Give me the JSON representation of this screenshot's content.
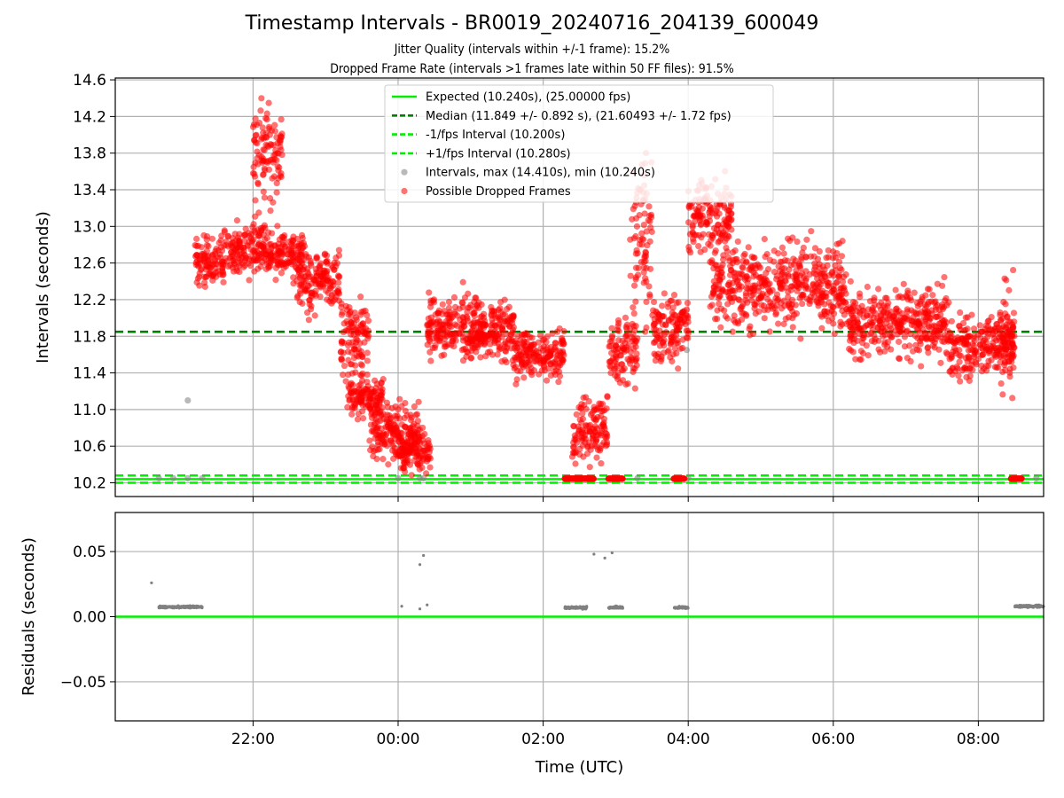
{
  "title": "Timestamp Intervals - BR0019_20240716_204139_600049",
  "subtitle1": "Jitter Quality (intervals within +/-1 frame): 15.2%",
  "subtitle2": "Dropped Frame Rate (intervals >1 frames late within 50 FF files): 91.5%",
  "colors": {
    "expected": "#00ee00",
    "median": "#008000",
    "bounds": "#00ee00",
    "intervals": "#808080",
    "dropped": "#ff0000"
  },
  "chart_data": [
    {
      "type": "scatter",
      "ylabel": "Intervals (seconds)",
      "xlabel": "",
      "x_unit": "hours UTC since 2024-07-16 00:00",
      "xlim": [
        20.1,
        32.9
      ],
      "ylim": [
        10.05,
        14.62
      ],
      "yticks": [
        "10.2",
        "10.6",
        "11.0",
        "11.4",
        "11.8",
        "12.2",
        "12.6",
        "13.0",
        "13.4",
        "13.8",
        "14.2",
        "14.6"
      ],
      "xticks": [
        "22:00",
        "00:00",
        "02:00",
        "04:00",
        "06:00",
        "08:00"
      ],
      "grid": true,
      "legend_position": "upper center",
      "series": [
        {
          "name": "Expected (10.240s), (25.00000 fps)",
          "kind": "hline",
          "y": 10.24,
          "style": "solid"
        },
        {
          "name": "Median (11.849 +/- 0.892 s), (21.60493 +/- 1.72 fps)",
          "kind": "hline",
          "y": 11.849,
          "style": "dashed"
        },
        {
          "name": "-1/fps Interval (10.200s)",
          "kind": "hline",
          "y": 10.2,
          "style": "dashed"
        },
        {
          "name": "+1/fps Interval (10.280s)",
          "kind": "hline",
          "y": 10.28,
          "style": "dashed"
        },
        {
          "name": "Intervals, max (14.410s), min (10.240s)",
          "kind": "scatter",
          "points": [
            [
              20.7,
              10.25
            ],
            [
              20.9,
              10.25
            ],
            [
              21.1,
              10.25
            ],
            [
              21.3,
              10.25
            ],
            [
              21.1,
              11.1
            ],
            [
              24.0,
              10.25
            ],
            [
              24.3,
              10.25
            ],
            [
              24.35,
              10.25
            ],
            [
              26.3,
              10.25
            ],
            [
              26.6,
              10.25
            ],
            [
              27.0,
              10.25
            ],
            [
              27.3,
              10.25
            ],
            [
              27.9,
              10.25
            ],
            [
              28.0,
              10.25
            ],
            [
              27.98,
              11.65
            ],
            [
              32.6,
              10.25
            ],
            [
              32.8,
              10.25
            ]
          ]
        },
        {
          "name": "Possible Dropped Frames",
          "kind": "scatter",
          "clusters": [
            {
              "x": [
                21.2,
                21.6
              ],
              "ymin": 12.3,
              "ymax": 12.95
            },
            {
              "x": [
                21.6,
                22.2
              ],
              "ymin": 12.4,
              "ymax": 13.1
            },
            {
              "x": [
                22.0,
                22.4
              ],
              "ymin": 13.2,
              "ymax": 14.4
            },
            {
              "x": [
                22.2,
                22.7
              ],
              "ymin": 12.4,
              "ymax": 13.0
            },
            {
              "x": [
                22.6,
                23.2
              ],
              "ymin": 12.0,
              "ymax": 12.8
            },
            {
              "x": [
                23.2,
                23.6
              ],
              "ymin": 11.3,
              "ymax": 12.2
            },
            {
              "x": [
                23.3,
                23.8
              ],
              "ymin": 10.9,
              "ymax": 11.4
            },
            {
              "x": [
                23.6,
                24.3
              ],
              "ymin": 10.4,
              "ymax": 11.1
            },
            {
              "x": [
                24.0,
                24.45
              ],
              "ymin": 10.3,
              "ymax": 10.8
            },
            {
              "x": [
                24.4,
                25.2
              ],
              "ymin": 11.5,
              "ymax": 12.3
            },
            {
              "x": [
                25.0,
                25.6
              ],
              "ymin": 11.5,
              "ymax": 12.2
            },
            {
              "x": [
                25.6,
                26.3
              ],
              "ymin": 11.3,
              "ymax": 11.9
            },
            {
              "x": [
                26.4,
                26.9
              ],
              "ymin": 10.3,
              "ymax": 11.2
            },
            {
              "x": [
                26.9,
                27.3
              ],
              "ymin": 11.2,
              "ymax": 12.1
            },
            {
              "x": [
                27.2,
                27.5
              ],
              "ymin": 12.0,
              "ymax": 13.9
            },
            {
              "x": [
                27.5,
                28.0
              ],
              "ymin": 11.5,
              "ymax": 12.3
            },
            {
              "x": [
                28.0,
                28.6
              ],
              "ymin": 12.6,
              "ymax": 13.6
            },
            {
              "x": [
                28.3,
                30.2
              ],
              "ymin": 11.8,
              "ymax": 12.9
            },
            {
              "x": [
                30.2,
                31.6
              ],
              "ymin": 11.5,
              "ymax": 12.4
            },
            {
              "x": [
                31.6,
                32.5
              ],
              "ymin": 11.3,
              "ymax": 12.1
            },
            {
              "x": [
                32.3,
                32.5
              ],
              "ymin": 10.9,
              "ymax": 12.6
            }
          ],
          "floor_runs": [
            [
              26.3,
              26.7
            ],
            [
              26.9,
              27.1
            ],
            [
              27.8,
              27.95
            ],
            [
              32.45,
              32.6
            ]
          ]
        }
      ]
    },
    {
      "type": "scatter",
      "ylabel": "Residuals (seconds)",
      "xlabel": "Time (UTC)",
      "xlim": [
        20.1,
        32.9
      ],
      "ylim": [
        -0.08,
        0.08
      ],
      "yticks": [
        "−0.05",
        "0.00",
        "0.05"
      ],
      "xticks": [
        "22:00",
        "00:00",
        "02:00",
        "04:00",
        "06:00",
        "08:00"
      ],
      "grid": true,
      "series": [
        {
          "name": "Residuals",
          "kind": "scatter",
          "clusters": [
            {
              "x": [
                20.7,
                21.3
              ],
              "y": 0.0075
            },
            {
              "x": [
                26.3,
                26.6
              ],
              "y": 0.007
            },
            {
              "x": [
                26.9,
                27.1
              ],
              "y": 0.007
            },
            {
              "x": [
                27.8,
                28.0
              ],
              "y": 0.007
            },
            {
              "x": [
                32.5,
                32.9
              ],
              "y": 0.008
            }
          ],
          "outliers": [
            [
              20.6,
              0.026
            ],
            [
              24.05,
              0.008
            ],
            [
              24.3,
              0.04
            ],
            [
              24.35,
              0.047
            ],
            [
              24.3,
              0.006
            ],
            [
              24.4,
              0.009
            ],
            [
              26.6,
              0.008
            ],
            [
              26.7,
              0.048
            ],
            [
              26.85,
              0.045
            ],
            [
              26.95,
              0.049
            ]
          ]
        },
        {
          "name": "Zero",
          "kind": "hline",
          "y": 0.0,
          "style": "solid"
        }
      ]
    }
  ]
}
